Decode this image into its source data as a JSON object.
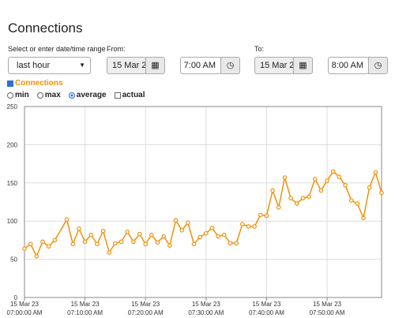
{
  "title": "Connections",
  "range_label": "Select or enter date/time range",
  "range_select": "last hour",
  "from_label": "From:",
  "from_date": "15 Mar 2",
  "from_time": "7:00 AM",
  "to_label": "To:",
  "to_date": "15 Mar 2",
  "to_time": "8:00 AM",
  "series_toggle": "Connections",
  "modes": [
    "min",
    "max",
    "average",
    "actual"
  ],
  "selected_mode": "average",
  "chart_data": {
    "type": "line",
    "x": [
      "07:00",
      "07:01",
      "07:02",
      "07:03",
      "07:04",
      "07:05",
      "07:07",
      "07:08",
      "07:09",
      "07:10",
      "07:11",
      "07:12",
      "07:13",
      "07:14",
      "07:15",
      "07:16",
      "07:17",
      "07:18",
      "07:19",
      "07:20",
      "07:21",
      "07:22",
      "07:23",
      "07:24",
      "07:25",
      "07:26",
      "07:27",
      "07:28",
      "07:29",
      "07:30",
      "07:31",
      "07:32",
      "07:33",
      "07:34",
      "07:35",
      "07:36",
      "07:37",
      "07:38",
      "07:39",
      "07:40",
      "07:41",
      "07:42",
      "07:43",
      "07:44",
      "07:45",
      "07:46",
      "07:47",
      "07:48",
      "07:49",
      "07:50",
      "07:51",
      "07:52",
      "07:53",
      "07:54",
      "07:55",
      "07:56",
      "07:57",
      "07:58",
      "07:59"
    ],
    "series": [
      {
        "color": "#f0900a",
        "values": [
          64,
          70,
          54,
          73,
          67,
          75,
          102,
          70,
          90,
          73,
          82,
          70,
          87,
          59,
          71,
          73,
          86,
          73,
          83,
          70,
          82,
          72,
          80,
          68,
          101,
          88,
          98,
          70,
          79,
          84,
          91,
          80,
          82,
          71,
          71,
          96,
          93,
          93,
          108,
          107,
          140,
          118,
          157,
          130,
          123,
          130,
          132,
          155,
          140,
          153,
          165,
          158,
          147,
          127,
          123,
          104,
          144,
          164,
          137
        ]
      }
    ],
    "xlim": [
      "07:00",
      "07:59"
    ],
    "xticks": [
      {
        "value": "07:00",
        "date": "15 Mar 23",
        "time": "07:00:00 AM"
      },
      {
        "value": "07:10",
        "date": "15 Mar 23",
        "time": "07:10:00 AM"
      },
      {
        "value": "07:20",
        "date": "15 Mar 23",
        "time": "07:20:00 AM"
      },
      {
        "value": "07:30",
        "date": "15 Mar 23",
        "time": "07:30:00 AM"
      },
      {
        "value": "07:40",
        "date": "15 Mar 23",
        "time": "07:40:00 AM"
      },
      {
        "value": "07:50",
        "date": "15 Mar 23",
        "time": "07:50:00 AM"
      }
    ],
    "ylim": [
      0,
      250
    ],
    "yticks": [
      0,
      50,
      100,
      150,
      200,
      250
    ],
    "grid": true
  }
}
